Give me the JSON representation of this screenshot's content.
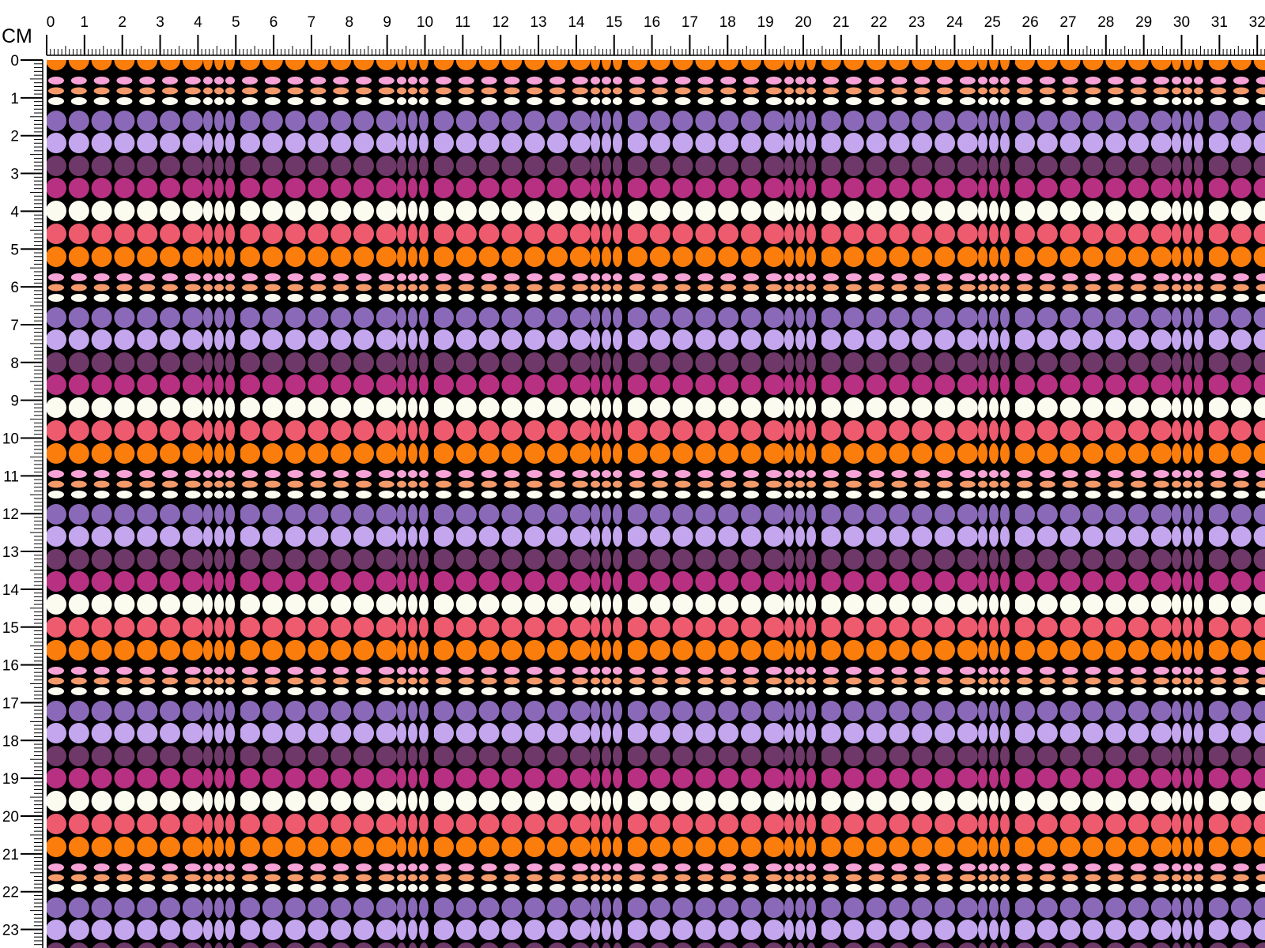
{
  "ruler": {
    "unit": "CM",
    "horizontal": [
      0,
      1,
      2,
      3,
      4,
      5,
      6,
      7,
      8,
      9,
      10,
      11,
      12,
      13,
      14,
      15,
      16,
      17,
      18,
      19,
      20,
      21,
      22,
      23,
      24,
      25,
      26,
      27,
      28,
      29,
      30,
      31,
      32
    ],
    "vertical": [
      0,
      1,
      2,
      3,
      4,
      5,
      6,
      7,
      8,
      9,
      10,
      11,
      12,
      13,
      14,
      15,
      16,
      17,
      18,
      19,
      20,
      21,
      22,
      23
    ]
  }
}
